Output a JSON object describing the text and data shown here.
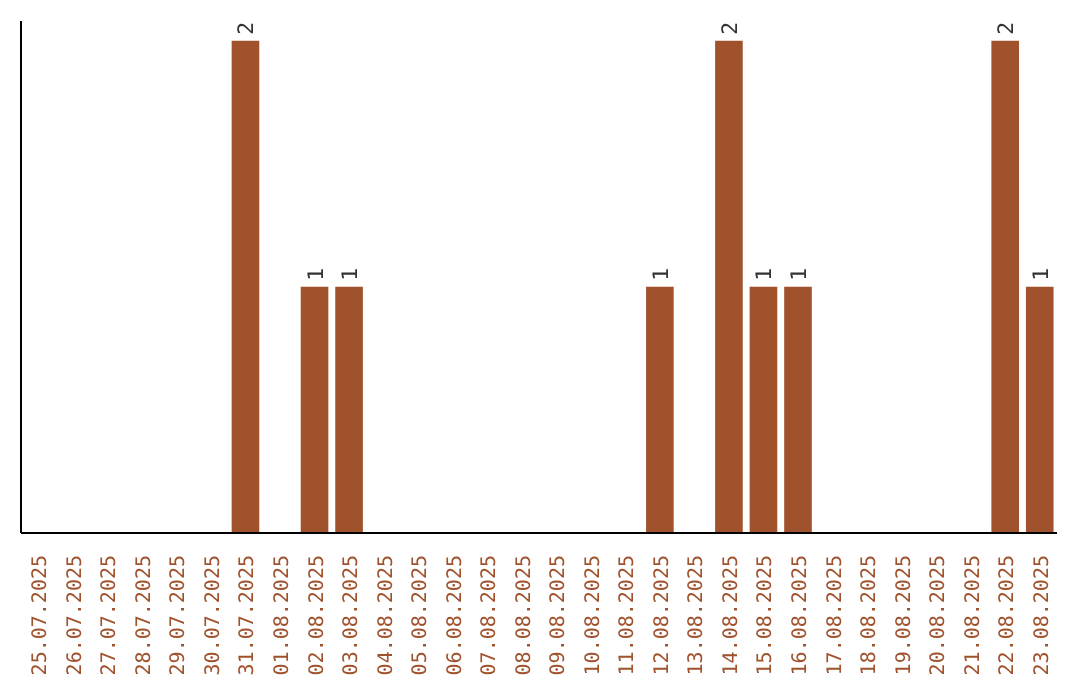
{
  "chart_data": {
    "type": "bar",
    "categories": [
      "25.07.2025",
      "26.07.2025",
      "27.07.2025",
      "28.07.2025",
      "29.07.2025",
      "30.07.2025",
      "31.07.2025",
      "01.08.2025",
      "02.08.2025",
      "03.08.2025",
      "04.08.2025",
      "05.08.2025",
      "06.08.2025",
      "07.08.2025",
      "08.08.2025",
      "09.08.2025",
      "10.08.2025",
      "11.08.2025",
      "12.08.2025",
      "13.08.2025",
      "14.08.2025",
      "15.08.2025",
      "16.08.2025",
      "17.08.2025",
      "18.08.2025",
      "19.08.2025",
      "20.08.2025",
      "21.08.2025",
      "22.08.2025",
      "23.08.2025"
    ],
    "values": [
      0,
      0,
      0,
      0,
      0,
      0,
      2,
      0,
      1,
      1,
      0,
      0,
      0,
      0,
      0,
      0,
      0,
      0,
      1,
      0,
      2,
      1,
      1,
      0,
      0,
      0,
      0,
      0,
      2,
      1
    ],
    "value_labels": [
      null,
      null,
      null,
      null,
      null,
      null,
      "2",
      null,
      "1",
      "1",
      null,
      null,
      null,
      null,
      null,
      null,
      null,
      null,
      "1",
      null,
      "2",
      "1",
      "1",
      null,
      null,
      null,
      null,
      null,
      "2",
      "1"
    ],
    "color": "#a0522d",
    "ylim": [
      0,
      2.08
    ],
    "tick_labels": "x",
    "grid": false
  }
}
